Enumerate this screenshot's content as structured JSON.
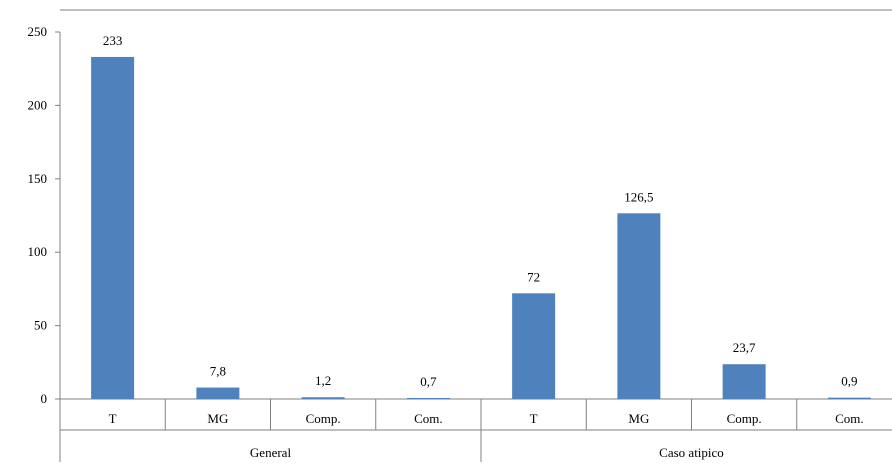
{
  "chart_data": {
    "type": "bar",
    "groups": [
      {
        "label": "General",
        "categories": [
          "T",
          "MG",
          "Comp.",
          "Com."
        ],
        "values": [
          233,
          7.8,
          1.2,
          0.7
        ],
        "data_labels": [
          "233",
          "7,8",
          "1,2",
          "0,7"
        ]
      },
      {
        "label": "Caso atipico",
        "categories": [
          "T",
          "MG",
          "Comp.",
          "Com."
        ],
        "values": [
          72,
          126.5,
          23.7,
          0.9
        ],
        "data_labels": [
          "72",
          "126,5",
          "23,7",
          "0,9"
        ]
      }
    ],
    "y_ticks": [
      "0",
      "50",
      "100",
      "150",
      "200",
      "250"
    ],
    "ylim": [
      0,
      250
    ],
    "grid": false,
    "legend": "none",
    "bar_color": "#4F81BD",
    "axis_color": "#808080"
  }
}
